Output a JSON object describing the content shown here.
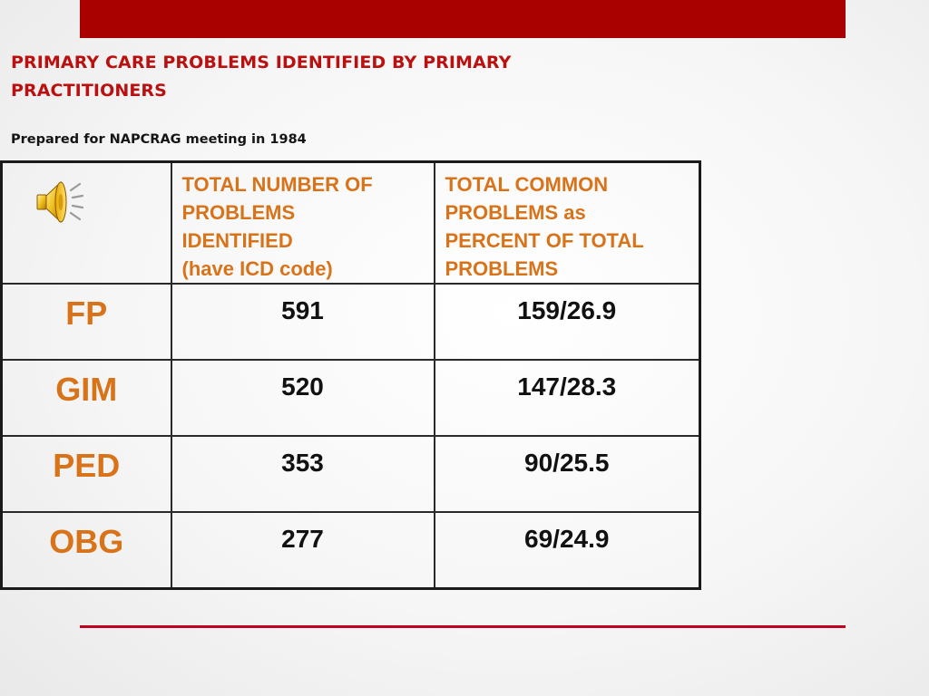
{
  "slide": {
    "title": "PRIMARY CARE PROBLEMS IDENTIFIED BY PRIMARY PRACTITIONERS",
    "subtitle": "Prepared for NAPCRAG meeting in 1984"
  },
  "table": {
    "headers": [
      {
        "lines": [
          "TOTAL NUMBER OF",
          "PROBLEMS",
          "IDENTIFIED",
          "(have ICD code)"
        ]
      },
      {
        "lines": [
          "TOTAL COMMON",
          "PROBLEMS as",
          "PERCENT OF TOTAL",
          "PROBLEMS"
        ]
      }
    ],
    "rows": [
      {
        "label": "FP",
        "total": "591",
        "common": "159/26.9"
      },
      {
        "label": "GIM",
        "total": "520",
        "common": "147/28.3"
      },
      {
        "label": "PED",
        "total": "353",
        "common": "90/25.5"
      },
      {
        "label": "OBG",
        "total": "277",
        "common": "69/24.9"
      }
    ]
  },
  "icons": {
    "audio": "speaker-icon"
  },
  "colors": {
    "accent_bar": "#a90000",
    "title": "#bb1010",
    "header_text": "#d9731a",
    "rule": "#c0001e"
  }
}
